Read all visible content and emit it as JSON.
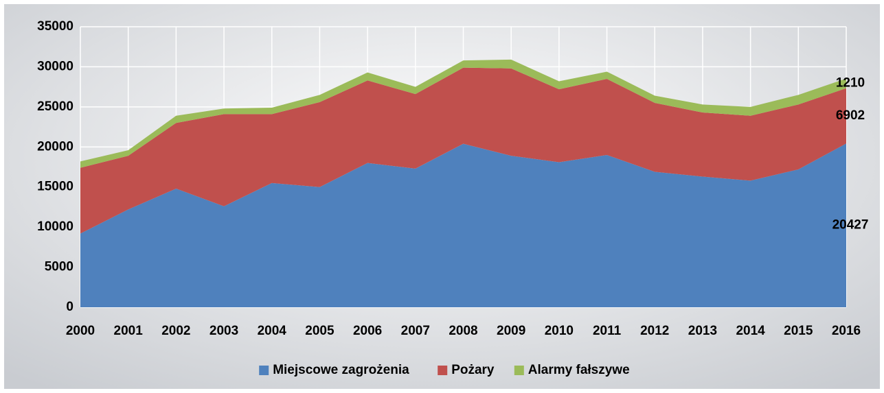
{
  "chart_data": {
    "type": "stacked_area",
    "categories": [
      "2000",
      "2001",
      "2002",
      "2003",
      "2004",
      "2005",
      "2006",
      "2007",
      "2008",
      "2009",
      "2010",
      "2011",
      "2012",
      "2013",
      "2014",
      "2015",
      "2016"
    ],
    "series": [
      {
        "name": "Miejscowe zagrożenia",
        "color": "#4f81bd",
        "values": [
          9200,
          12200,
          14800,
          12600,
          15500,
          15000,
          18000,
          17300,
          20400,
          18900,
          18100,
          19000,
          16900,
          16300,
          15800,
          17200,
          20427
        ]
      },
      {
        "name": "Pożary",
        "color": "#c0504d",
        "values": [
          8200,
          6700,
          8200,
          11500,
          8600,
          10600,
          10300,
          9300,
          9500,
          10900,
          9100,
          9500,
          8600,
          8000,
          8100,
          8100,
          6902
        ]
      },
      {
        "name": "Alarmy fałszywe",
        "color": "#9bbb59",
        "values": [
          800,
          700,
          900,
          700,
          800,
          900,
          1000,
          900,
          900,
          1100,
          1000,
          900,
          900,
          1000,
          1100,
          1200,
          1210
        ]
      }
    ],
    "ylim": [
      0,
      35000
    ],
    "yticks": [
      0,
      5000,
      10000,
      15000,
      20000,
      25000,
      30000,
      35000
    ],
    "grid": true,
    "legend": "bottom"
  }
}
